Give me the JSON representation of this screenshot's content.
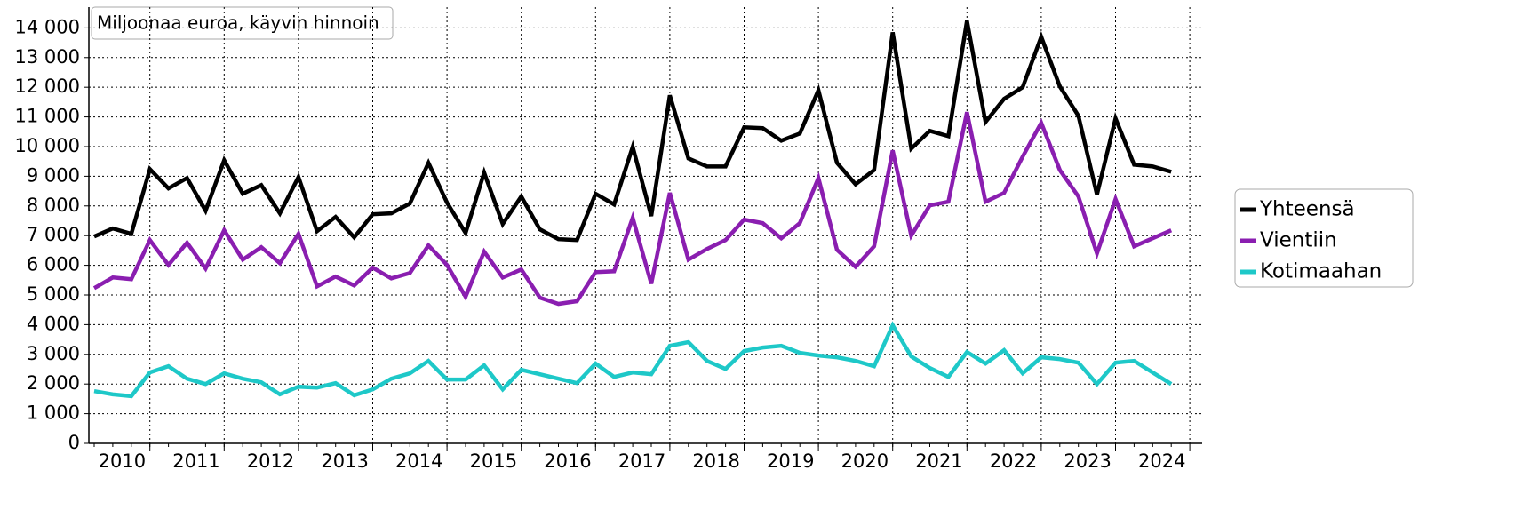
{
  "chart_data": {
    "type": "line",
    "annotation": "Miljoonaa euroa, käyvin hinnoin",
    "categories": [
      null,
      "2010",
      null,
      null,
      null,
      "2011",
      null,
      null,
      null,
      "2012",
      null,
      null,
      null,
      "2013",
      null,
      null,
      null,
      "2014",
      null,
      null,
      null,
      "2015",
      null,
      null,
      null,
      "2016",
      null,
      null,
      null,
      "2017",
      null,
      null,
      null,
      "2018",
      null,
      null,
      null,
      "2019",
      null,
      null,
      null,
      "2020",
      null,
      null,
      null,
      "2021",
      null,
      null,
      null,
      "2022",
      null,
      null,
      null,
      "2023",
      null,
      null,
      null,
      "2024",
      null
    ],
    "series": [
      {
        "name": "Yhteensä",
        "color": "#000000",
        "values": [
          6970,
          7240,
          7060,
          9240,
          8590,
          8940,
          7840,
          9540,
          8410,
          8700,
          7750,
          8970,
          7150,
          7630,
          6940,
          7720,
          7750,
          8080,
          9450,
          8110,
          7090,
          9120,
          7390,
          8320,
          7210,
          6880,
          6850,
          8410,
          8050,
          9990,
          7660,
          11730,
          9600,
          9330,
          9330,
          10650,
          10620,
          10200,
          10440,
          11900,
          9450,
          8730,
          9210,
          13850,
          9930,
          10530,
          10350,
          14240,
          10830,
          11610,
          12000,
          13700,
          12030,
          11040,
          8380,
          10950,
          9390,
          9330,
          9150
        ]
      },
      {
        "name": "Vientiin",
        "color": "#8a1eb0",
        "values": [
          5230,
          5590,
          5530,
          6850,
          6010,
          6760,
          5890,
          7180,
          6190,
          6610,
          6070,
          7060,
          5290,
          5620,
          5320,
          5920,
          5560,
          5740,
          6670,
          6010,
          4940,
          6460,
          5590,
          5860,
          4910,
          4700,
          4790,
          5770,
          5800,
          7600,
          5380,
          8440,
          6190,
          6550,
          6850,
          7540,
          7420,
          6910,
          7420,
          8940,
          6520,
          5950,
          6640,
          9870,
          7000,
          8020,
          8140,
          11160,
          8140,
          8440,
          9660,
          10800,
          9210,
          8320,
          6400,
          8230,
          6640,
          6910,
          7180
        ]
      },
      {
        "name": "Kotimaahan",
        "color": "#1ec8c8",
        "values": [
          1760,
          1650,
          1590,
          2390,
          2600,
          2180,
          2000,
          2360,
          2180,
          2060,
          1650,
          1910,
          1880,
          2030,
          1620,
          1820,
          2180,
          2360,
          2780,
          2150,
          2150,
          2630,
          1820,
          2480,
          2330,
          2180,
          2030,
          2690,
          2240,
          2390,
          2330,
          3290,
          3410,
          2780,
          2510,
          3110,
          3230,
          3290,
          3050,
          2960,
          2900,
          2780,
          2600,
          3980,
          2930,
          2540,
          2240,
          3080,
          2690,
          3140,
          2360,
          2900,
          2840,
          2720,
          2000,
          2720,
          2780,
          2390,
          2000
        ]
      }
    ],
    "ylim": [
      0,
      14700
    ],
    "yticks": [
      0,
      {
        "value": 1000,
        "label": "1 000"
      },
      {
        "value": 2000,
        "label": "2 000"
      },
      {
        "value": 3000,
        "label": "3 000"
      },
      {
        "value": 4000,
        "label": "4 000"
      },
      {
        "value": 5000,
        "label": "5 000"
      },
      {
        "value": 6000,
        "label": "6 000"
      },
      {
        "value": 7000,
        "label": "7 000"
      },
      {
        "value": 8000,
        "label": "8 000"
      },
      {
        "value": 9000,
        "label": "9 000"
      },
      {
        "value": 10000,
        "label": "10 000"
      },
      {
        "value": 11000,
        "label": "11 000"
      },
      {
        "value": 12000,
        "label": "12 000"
      },
      {
        "value": 13000,
        "label": "13 000"
      },
      {
        "value": 14000,
        "label": "14 000"
      }
    ],
    "grid": true,
    "legend": "right"
  }
}
